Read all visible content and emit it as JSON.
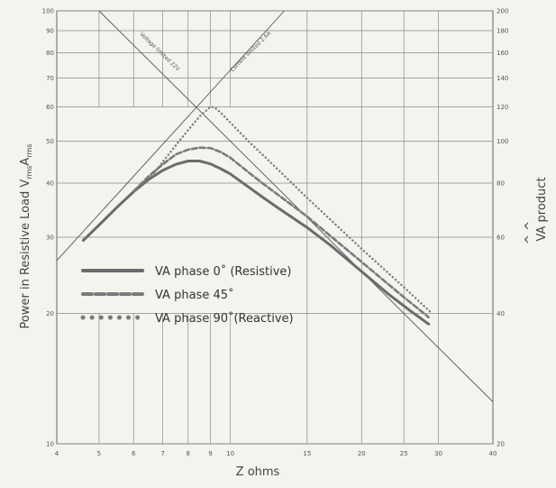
{
  "chart_data": {
    "type": "line",
    "x_scale": "log",
    "y_scale": "log",
    "xlim": [
      4,
      40
    ],
    "ylim": [
      10,
      100
    ],
    "ylim_right": [
      20,
      200
    ],
    "xlabel": "Z  ohms",
    "ylabel_parts": {
      "main": "Power   in   Resistive   Load   V",
      "sub1": "rms",
      "mid": "A",
      "sub2": "rms"
    },
    "ylabel_right": "VA  product",
    "ylabel_right_hat": "^ ^",
    "x_ticks": [
      4,
      5,
      6,
      7,
      8,
      9,
      10,
      15,
      20,
      25,
      30,
      40
    ],
    "y_ticks": [
      10,
      20,
      30,
      40,
      50,
      60,
      70,
      80,
      90,
      100
    ],
    "y_ticks_right": [
      20,
      40,
      60,
      80,
      100,
      120,
      140,
      160,
      180,
      200
    ],
    "grid": true,
    "limit_lines": [
      {
        "label": "Voltage limited 22V",
        "kind": "voltage",
        "volts": 22
      },
      {
        "label": "Current limited 2.6A",
        "kind": "current",
        "amps": 2.6
      }
    ],
    "series": [
      {
        "name": "VA  phase   0˚ (Resistive)",
        "style": "solid",
        "color": "#6b6b6b",
        "x": [
          4.6,
          5.0,
          5.5,
          6.0,
          6.5,
          7.0,
          7.5,
          8.0,
          8.5,
          9.0,
          9.5,
          10,
          11,
          12,
          13,
          15,
          17,
          20,
          23,
          26,
          28.5
        ],
        "y": [
          29.5,
          32,
          35.2,
          38.2,
          40.8,
          42.8,
          44.2,
          45.0,
          45.0,
          44.3,
          43.2,
          42.0,
          39.2,
          36.8,
          34.8,
          31.6,
          28.7,
          25.0,
          22.2,
          20.2,
          18.9
        ]
      },
      {
        "name": "VA  phase  45˚",
        "style": "dashed",
        "color": "#7a7a7a",
        "x": [
          6.0,
          6.5,
          7.0,
          7.5,
          8.0,
          8.5,
          9.0,
          9.5,
          10,
          11,
          12,
          15,
          20,
          25,
          28.5
        ],
        "y": [
          38.3,
          41.5,
          44.2,
          46.6,
          47.8,
          48.3,
          48.2,
          47.2,
          45.8,
          42.4,
          39.6,
          33.5,
          26.3,
          21.8,
          19.6
        ]
      },
      {
        "name": "VA  phase  90˚(Reactive)",
        "style": "dotted",
        "color": "#7a7a7a",
        "x": [
          6.6,
          7.0,
          7.5,
          8.0,
          8.5,
          9.0,
          9.2,
          9.5,
          10,
          11,
          12,
          15,
          20,
          25,
          29
        ],
        "y": [
          41.5,
          44.8,
          48.9,
          53.0,
          57.0,
          60.0,
          59.8,
          58.2,
          55.2,
          50.0,
          46.0,
          37.0,
          28.2,
          23.0,
          20.0
        ]
      }
    ]
  }
}
